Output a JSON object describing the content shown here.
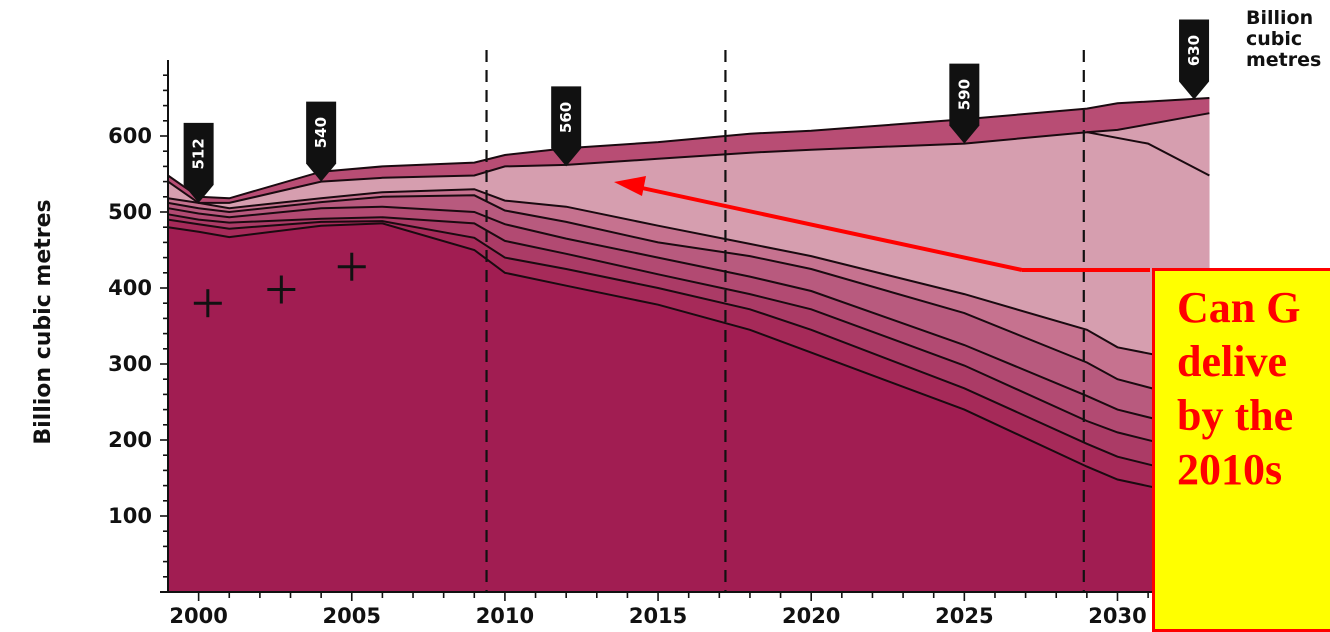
{
  "chart_data": {
    "type": "area",
    "title": "",
    "xlabel": "",
    "ylabel": "Billion cubic metres",
    "unit_label": "Billion cubic metres",
    "xlim": [
      1999,
      2034
    ],
    "ylim": [
      0,
      700
    ],
    "x_ticks": [
      2000,
      2005,
      2010,
      2015,
      2020,
      2025,
      2030
    ],
    "y_ticks": [
      100,
      200,
      300,
      400,
      500,
      600
    ],
    "x": [
      1999,
      2000,
      2001,
      2004,
      2006,
      2009,
      2010,
      2012,
      2015,
      2018,
      2020,
      2025,
      2029,
      2030,
      2033
    ],
    "boundaries": [
      [
        480,
        474,
        467,
        482,
        485,
        450,
        420,
        403,
        378,
        345,
        315,
        240,
        165,
        148,
        122
      ],
      [
        490,
        484,
        478,
        487,
        488,
        466,
        440,
        425,
        400,
        372,
        345,
        268,
        195,
        178,
        148
      ],
      [
        497,
        490,
        486,
        491,
        493,
        485,
        462,
        445,
        418,
        392,
        372,
        298,
        225,
        210,
        180
      ],
      [
        505,
        498,
        493,
        505,
        507,
        500,
        484,
        465,
        440,
        415,
        396,
        325,
        258,
        240,
        210
      ],
      [
        512,
        505,
        500,
        513,
        520,
        522,
        502,
        487,
        460,
        442,
        425,
        367,
        302,
        280,
        248
      ],
      [
        518,
        512,
        505,
        518,
        526,
        530,
        515,
        507,
        482,
        458,
        442,
        392,
        345,
        322,
        298
      ],
      [
        540,
        512,
        512,
        540,
        545,
        548,
        560,
        562,
        570,
        578,
        582,
        590,
        605,
        608,
        630
      ]
    ],
    "top_layer": [
      548,
      520,
      518,
      553,
      560,
      565,
      575,
      584,
      592,
      603,
      607,
      622,
      636,
      643,
      650
    ],
    "thin_lines": [
      {
        "x": [
          2029,
          2031,
          2033
        ],
        "y": [
          605,
          590,
          548
        ]
      }
    ],
    "phase_lines_x": [
      2009.4,
      2017.2,
      2028.9
    ],
    "value_markers": [
      {
        "label": "512",
        "x": 2000,
        "y": 512
      },
      {
        "label": "540",
        "x": 2004,
        "y": 540
      },
      {
        "label": "560",
        "x": 2012,
        "y": 560
      },
      {
        "label": "590",
        "x": 2025,
        "y": 590
      },
      {
        "label": "630",
        "x": 2032.5,
        "y": 648
      }
    ],
    "cross_markers": [
      {
        "x": 2000.3,
        "y": 380
      },
      {
        "x": 2002.7,
        "y": 398
      },
      {
        "x": 2005.0,
        "y": 428
      }
    ],
    "colors": {
      "base": "#a11d52",
      "layer1": "#a62a59",
      "layer2": "#ab3b66",
      "layer3": "#b24a72",
      "layer4": "#b85a7e",
      "layer5": "#c6728f",
      "gap": "#d69eaf",
      "top": "#b84d74",
      "lines": "#1a0a10",
      "arrow": "#ff0000"
    }
  },
  "callout": {
    "text": "Can G\ndelive\nby the\n2010s",
    "text_color": "#ff0000",
    "bg_color": "#ffff00",
    "border_color": "#ff0000"
  }
}
